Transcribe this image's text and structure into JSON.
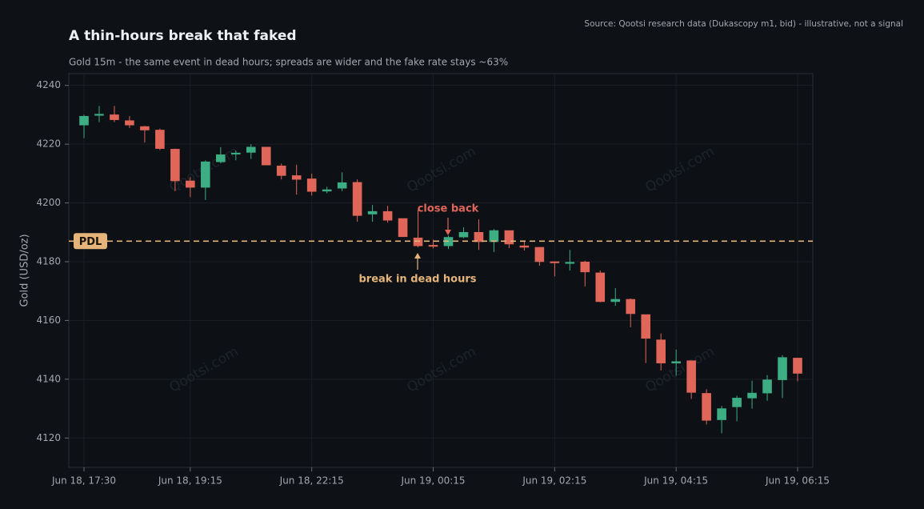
{
  "chart_data": {
    "type": "candlestick",
    "title": "A thin-hours break that faked",
    "subtitle": "Gold 15m - the same event in dead hours; spreads are wider and the fake rate stays ~63%",
    "source": "Source: Qootsi research data (Dukascopy m1, bid) - illustrative, not a signal",
    "watermark": "Qootsi.com",
    "ylabel": "Gold (USD/oz)",
    "ylim": [
      4110,
      4244
    ],
    "yticks": [
      4120,
      4140,
      4160,
      4180,
      4200,
      4220,
      4240
    ],
    "grid": true,
    "up_color": "#3dae84",
    "down_color": "#e0665a",
    "categories": [
      "Jun 18, 17:30",
      null,
      null,
      null,
      null,
      null,
      null,
      "Jun 18, 19:15",
      null,
      null,
      null,
      null,
      null,
      null,
      null,
      "Jun 18, 22:15",
      null,
      null,
      null,
      null,
      null,
      null,
      null,
      "Jun 19, 00:15",
      null,
      null,
      null,
      null,
      null,
      null,
      null,
      "Jun 19, 02:15",
      null,
      null,
      null,
      null,
      null,
      null,
      null,
      "Jun 19, 04:15",
      null,
      null,
      null,
      null,
      null,
      null,
      null,
      "Jun 19, 06:15"
    ],
    "open": [
      4226.5,
      4229.8,
      4230,
      4228,
      4226,
      4224.8,
      4218.3,
      4207.5,
      4205.3,
      4214,
      4216.8,
      4217.2,
      4219,
      4212.6,
      4209.3,
      4208.2,
      4204,
      4205,
      4207,
      4196.2,
      4197.1,
      4194.7,
      4188.1,
      4185.6,
      4185.4,
      4188.4,
      4190,
      4186.8,
      4190.6,
      4185.4,
      4184.9,
      4180,
      4179.6,
      4179.9,
      4176.2,
      4166.4,
      4167.2,
      4162,
      4153.4,
      4145.5,
      4146.3,
      4135.2,
      4126.2,
      4130.6,
      4133.6,
      4135.3,
      4139.8,
      4147.2
    ],
    "high": [
      4230,
      4233,
      4233,
      4229.5,
      4226.2,
      4225.3,
      4218.5,
      4208.8,
      4214.5,
      4219,
      4217.8,
      4220,
      4219,
      4213.4,
      4213,
      4210,
      4205.5,
      4210.4,
      4208,
      4199.3,
      4199,
      4194.7,
      4197.7,
      4187.5,
      4188.9,
      4191.7,
      4194.4,
      4191.1,
      4190.6,
      4187,
      4184.9,
      4180,
      4184,
      4180.3,
      4177,
      4171,
      4167.5,
      4162,
      4155.6,
      4150.1,
      4146.3,
      4136.6,
      4130.9,
      4134.4,
      4139.5,
      4141.4,
      4148.2,
      4147.2
    ],
    "low": [
      4222,
      4227.5,
      4227.5,
      4225.5,
      4220.5,
      4218,
      4204,
      4202,
      4201,
      4213.5,
      4214.5,
      4215,
      4212.8,
      4208,
      4202.8,
      4202.5,
      4203.3,
      4204,
      4193.6,
      4193.6,
      4193.3,
      4188.4,
      4184.9,
      4184.5,
      4184.3,
      4188,
      4184,
      4183.3,
      4184.6,
      4183.8,
      4178.6,
      4175,
      4177,
      4171.6,
      4166.2,
      4165,
      4157.7,
      4145.5,
      4143,
      4141.2,
      4133.3,
      4124.6,
      4121.6,
      4125.7,
      4130,
      4132.7,
      4133.6,
      4139.3
    ],
    "close": [
      4229.5,
      4230.2,
      4228.3,
      4226.5,
      4224.8,
      4218.5,
      4207.5,
      4205.3,
      4214,
      4216.4,
      4217,
      4219,
      4212.9,
      4209.3,
      4208,
      4203.9,
      4204.5,
      4206.9,
      4195.7,
      4197.1,
      4194.1,
      4188.5,
      4185.4,
      4185.2,
      4188.3,
      4190,
      4186.8,
      4190.6,
      4186,
      4184.9,
      4180,
      4179.7,
      4179.8,
      4176.5,
      4166.4,
      4167.2,
      4162.3,
      4153.9,
      4145.5,
      4146,
      4135.5,
      4126,
      4130,
      4133.6,
      4135.3,
      4139.8,
      4147.4,
      4142
    ],
    "pdl": {
      "value": 4187,
      "label": "PDL",
      "color": "#e4b47a"
    },
    "annotations": [
      {
        "text": "close back",
        "color": "#e0665a"
      },
      {
        "text": "break in dead hours",
        "color": "#e4b47a"
      }
    ]
  }
}
